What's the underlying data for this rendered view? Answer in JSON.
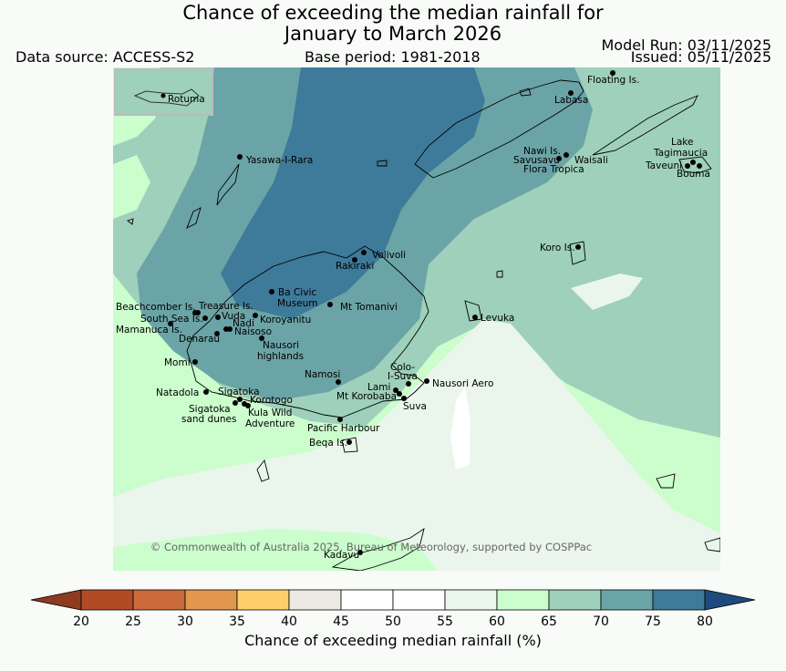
{
  "header": {
    "title_line1": "Chance of exceeding the median rainfall for",
    "title_line2": "January to March 2026",
    "data_source": "Data source: ACCESS-S2",
    "base_period": "Base period: 1981-2018",
    "model_run": "Model Run: 03/11/2025",
    "issued": "Issued: 05/11/2025"
  },
  "map": {
    "inset_label": "Rotuma",
    "copyright": "© Commonwealth of Australia 2025, Bureau of Meteorology, supported by COSPPac",
    "places": [
      "Floating Is.",
      "Labasa",
      "Yasawa-I-Rara",
      "Nawi Is.",
      "Savusavu",
      "Waisali",
      "Flora Tropica",
      "Lake",
      "Tagimaucia",
      "Taveuni",
      "Bouma",
      "Koro Is.",
      "Volivoli",
      "Rakiraki",
      "Ba Civic",
      "Museum",
      "Mt Tomanivi",
      "Beachcomber Is.",
      "Treasure Is.",
      "South Sea Is.",
      "Vuda",
      "Nadi",
      "Koroyanitu",
      "Mamanuca Is.",
      "Naisoso",
      "Denarau",
      "Nausori",
      "highlands",
      "Levuka",
      "Momi",
      "Colo-",
      "I-Suva",
      "Namosi",
      "Lami",
      "Nausori Aero",
      "Natadola",
      "Sigatoka",
      "Mt Korobaba",
      "Korotogo",
      "Suva",
      "Sigatoka",
      "sand dunes",
      "Kula Wild",
      "Adventure",
      "Pacific Harbour",
      "Beqa Is.",
      "Kadavu"
    ]
  },
  "colorbar": {
    "ticks": [
      "20",
      "25",
      "30",
      "35",
      "40",
      "45",
      "50",
      "55",
      "60",
      "65",
      "70",
      "75",
      "80"
    ],
    "label": "Chance of exceeding median rainfall (%)",
    "low_extend_color": "#8e3b1f",
    "colors": [
      "#b24b25",
      "#cb6a3a",
      "#e2974e",
      "#fdce6c",
      "#eceae3",
      "#ffffff",
      "#ffffff",
      "#eaf6ec",
      "#cbfdcd",
      "#9ed0bb",
      "#6ba4a6",
      "#3e7a9a"
    ],
    "high_extend_color": "#1f4a7f"
  }
}
